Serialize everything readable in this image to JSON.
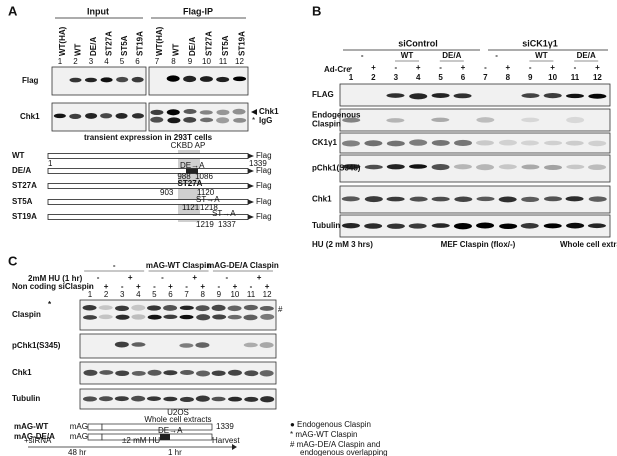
{
  "panel_a": {
    "label": "A",
    "input": "Input",
    "flag_ip": "Flag-IP",
    "lanes": [
      "WT(HA)",
      "WT",
      "DE/A",
      "ST27A",
      "ST5A",
      "ST19A",
      "WT(HA)",
      "WT",
      "DE/A",
      "ST27A",
      "ST5A",
      "ST19A"
    ],
    "lane_numbers": [
      "1",
      "2",
      "3",
      "4",
      "5",
      "6",
      "7",
      "8",
      "9",
      "10",
      "11",
      "12"
    ],
    "rows": [
      "Flag",
      "Chk1"
    ],
    "right_labels": [
      "Chk1",
      "IgG",
      "*"
    ],
    "caption": "transient expression in 293T cells",
    "diagram": {
      "header": "CKBD AP",
      "constructs": [
        "WT",
        "DE/A",
        "ST27A",
        "ST5A",
        "ST19A"
      ],
      "tag": "Flag",
      "start": "1",
      "end": "1339",
      "labels": [
        "988",
        "1086",
        "DE→A",
        "ST27A",
        "903",
        "1120",
        "ST→A",
        "1121",
        "1218",
        "ST→A",
        "1219",
        "1337"
      ]
    }
  },
  "panel_b": {
    "label": "B",
    "groups": [
      "siControl",
      "siCK1γ1"
    ],
    "subgroups": [
      "-",
      "WT",
      "DE/A",
      "-",
      "WT",
      "DE/A"
    ],
    "ad_cre": "Ad-Cre",
    "ad_cre_signs": [
      "-",
      "+",
      "-",
      "+",
      "-",
      "+",
      "-",
      "+",
      "-",
      "+",
      "-",
      "+"
    ],
    "lane_numbers": [
      "1",
      "2",
      "3",
      "4",
      "5",
      "6",
      "7",
      "8",
      "9",
      "10",
      "11",
      "12"
    ],
    "rows": [
      [
        "FLAG"
      ],
      [
        "Endogenous",
        "Claspin"
      ],
      [
        "CK1γ1"
      ],
      [
        "pChk1(S345)"
      ],
      [
        "Chk1"
      ],
      [
        "Tubulin"
      ]
    ],
    "hu": "HU (2 mM 3 hrs)",
    "cells": "MEF Claspin (flox/-)",
    "extract": "Whole cell extracts"
  },
  "panel_c": {
    "label": "C",
    "groups": [
      "-",
      "mAG-WT Claspin",
      "mAG-DE/A Claspin"
    ],
    "hu_label": "2mM HU (1 hr)",
    "hu_signs": [
      "-",
      "+",
      "-",
      "+",
      "-",
      "+"
    ],
    "sicl_label": "Non coding siClaspin",
    "sicl_signs": [
      "-",
      "+",
      "-",
      "+",
      "-",
      "+",
      "-",
      "+",
      "-",
      "+",
      "-",
      "+"
    ],
    "lane_numbers": [
      "1",
      "2",
      "3",
      "4",
      "5",
      "6",
      "7",
      "8",
      "9",
      "10",
      "11",
      "12"
    ],
    "rows": [
      "Claspin",
      "pChk1(S345)",
      "Chk1",
      "Tubulin"
    ],
    "claspin_marks": [
      "*",
      "#"
    ],
    "cells": "U2OS",
    "extract": "Whole cell extracts",
    "constructs": [
      "mAG-WT",
      "mAG-DE/A"
    ],
    "tag": "mAG",
    "mutation": "DE→A",
    "end": "1339",
    "legend": [
      "● Endogenous Claspin",
      "* mAG-WT Claspin",
      "# mAG-DE/A Claspin and",
      "endogenous overlapping"
    ],
    "timeline": [
      "+siRNA",
      "±2 mM HU",
      "Harvest",
      "48 hr",
      "1 hr"
    ]
  }
}
